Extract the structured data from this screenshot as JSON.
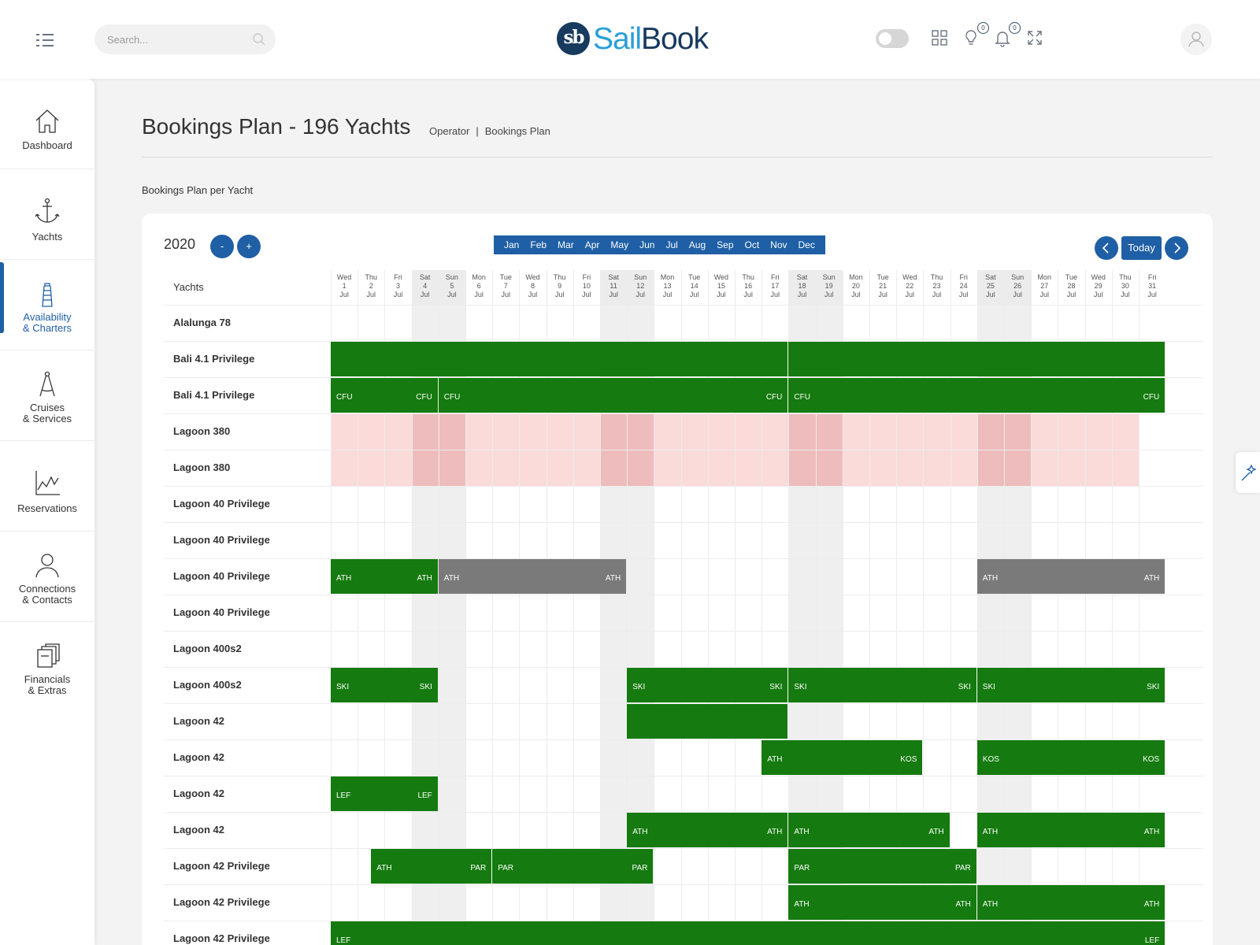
{
  "app": {
    "logo_prefix": "sb",
    "logo_sail": "Sail",
    "logo_book": "Book"
  },
  "topbar": {
    "search_placeholder": "Search...",
    "icons": [
      "menu-icon",
      "search-icon",
      "theme-toggle",
      "apps-grid-icon",
      "lightbulb-icon",
      "bell-icon",
      "fullscreen-icon",
      "user-icon"
    ],
    "tips_count": "0",
    "notifications_count": "0"
  },
  "sidebar": {
    "items": [
      {
        "label": "Dashboard",
        "icon": "home-icon"
      },
      {
        "label": "Yachts",
        "icon": "anchor-icon"
      },
      {
        "label": "Availability\n& Charters",
        "icon": "lighthouse-icon",
        "active": true
      },
      {
        "label": "Cruises\n& Services",
        "icon": "compass-icon"
      },
      {
        "label": "Reservations",
        "icon": "chart-line-icon"
      },
      {
        "label": "Connections\n& Contacts",
        "icon": "person-icon"
      },
      {
        "label": "Financials\n& Extras",
        "icon": "documents-icon"
      }
    ]
  },
  "page": {
    "title": "Bookings Plan - 196 Yachts",
    "breadcrumb": [
      "Operator",
      "Bookings Plan"
    ],
    "breadcrumb_sep": "|",
    "section_label": "Bookings Plan per Yacht"
  },
  "planner": {
    "year": "2020",
    "minus_label": "-",
    "plus_label": "+",
    "months": [
      "Jan",
      "Feb",
      "Mar",
      "Apr",
      "May",
      "Jun",
      "Jul",
      "Aug",
      "Sep",
      "Oct",
      "Nov",
      "Dec"
    ],
    "today_label": "Today",
    "prev_icon": "chevron-left-icon",
    "next_icon": "chevron-right-icon",
    "yachts_header": "Yachts",
    "month_abbr": "Jul",
    "days": [
      {
        "dow": "Wed",
        "d": "1"
      },
      {
        "dow": "Thu",
        "d": "2"
      },
      {
        "dow": "Fri",
        "d": "3"
      },
      {
        "dow": "Sat",
        "d": "4"
      },
      {
        "dow": "Sun",
        "d": "5"
      },
      {
        "dow": "Mon",
        "d": "6"
      },
      {
        "dow": "Tue",
        "d": "7"
      },
      {
        "dow": "Wed",
        "d": "8"
      },
      {
        "dow": "Thu",
        "d": "9"
      },
      {
        "dow": "Fri",
        "d": "10"
      },
      {
        "dow": "Sat",
        "d": "11"
      },
      {
        "dow": "Sun",
        "d": "12"
      },
      {
        "dow": "Mon",
        "d": "13"
      },
      {
        "dow": "Tue",
        "d": "14"
      },
      {
        "dow": "Wed",
        "d": "15"
      },
      {
        "dow": "Thu",
        "d": "16"
      },
      {
        "dow": "Fri",
        "d": "17"
      },
      {
        "dow": "Sat",
        "d": "18"
      },
      {
        "dow": "Sun",
        "d": "19"
      },
      {
        "dow": "Mon",
        "d": "20"
      },
      {
        "dow": "Tue",
        "d": "21"
      },
      {
        "dow": "Wed",
        "d": "22"
      },
      {
        "dow": "Thu",
        "d": "23"
      },
      {
        "dow": "Fri",
        "d": "24"
      },
      {
        "dow": "Sat",
        "d": "25"
      },
      {
        "dow": "Sun",
        "d": "26"
      },
      {
        "dow": "Mon",
        "d": "27"
      },
      {
        "dow": "Tue",
        "d": "28"
      },
      {
        "dow": "Wed",
        "d": "29"
      },
      {
        "dow": "Thu",
        "d": "30"
      },
      {
        "dow": "Fri",
        "d": "31"
      }
    ],
    "colors": {
      "booked": "#157a0f",
      "option": "#7a7a7a",
      "unavailable": "#fbdada",
      "accent": "#1f5fa5"
    },
    "rows": [
      {
        "yacht": "Alalunga 78",
        "bookings": []
      },
      {
        "yacht": "Bali 4.1 Privilege",
        "bookings": [
          {
            "start": 1,
            "end": 18,
            "from": "",
            "to": "",
            "status": "booked"
          },
          {
            "start": 18,
            "end": 32,
            "from": "",
            "to": "",
            "status": "booked"
          }
        ]
      },
      {
        "yacht": "Bali 4.1 Privilege",
        "bookings": [
          {
            "start": 1,
            "end": 5,
            "from": "CFU",
            "to": "CFU",
            "status": "booked"
          },
          {
            "start": 5,
            "end": 18,
            "from": "CFU",
            "to": "CFU",
            "status": "booked"
          },
          {
            "start": 18,
            "end": 32,
            "from": "CFU",
            "to": "CFU",
            "status": "booked"
          }
        ]
      },
      {
        "yacht": "Lagoon 380",
        "unavailable": true,
        "bookings": []
      },
      {
        "yacht": "Lagoon 380",
        "unavailable": true,
        "bookings": []
      },
      {
        "yacht": "Lagoon 40 Privilege",
        "bookings": []
      },
      {
        "yacht": "Lagoon 40 Privilege",
        "bookings": []
      },
      {
        "yacht": "Lagoon 40 Privilege",
        "bookings": [
          {
            "start": 1,
            "end": 5,
            "from": "ATH",
            "to": "ATH",
            "status": "booked"
          },
          {
            "start": 5,
            "end": 12,
            "from": "ATH",
            "to": "ATH",
            "status": "option"
          },
          {
            "start": 25,
            "end": 32,
            "from": "ATH",
            "to": "ATH",
            "status": "option"
          }
        ]
      },
      {
        "yacht": "Lagoon 40 Privilege",
        "bookings": []
      },
      {
        "yacht": "Lagoon 400s2",
        "bookings": []
      },
      {
        "yacht": "Lagoon 400s2",
        "bookings": [
          {
            "start": 1,
            "end": 5,
            "from": "SKI",
            "to": "SKI",
            "status": "booked"
          },
          {
            "start": 12,
            "end": 18,
            "from": "SKI",
            "to": "SKI",
            "status": "booked"
          },
          {
            "start": 18,
            "end": 25,
            "from": "SKI",
            "to": "SKI",
            "status": "booked"
          },
          {
            "start": 25,
            "end": 32,
            "from": "SKI",
            "to": "SKI",
            "status": "booked"
          }
        ]
      },
      {
        "yacht": "Lagoon 42",
        "bookings": [
          {
            "start": 12,
            "end": 18,
            "from": "",
            "to": "",
            "status": "booked"
          }
        ]
      },
      {
        "yacht": "Lagoon 42",
        "bookings": [
          {
            "start": 17,
            "end": 23,
            "from": "ATH",
            "to": "KOS",
            "status": "booked"
          },
          {
            "start": 25,
            "end": 32,
            "from": "KOS",
            "to": "KOS",
            "status": "booked"
          }
        ]
      },
      {
        "yacht": "Lagoon 42",
        "bookings": [
          {
            "start": 1,
            "end": 5,
            "from": "LEF",
            "to": "LEF",
            "status": "booked"
          }
        ]
      },
      {
        "yacht": "Lagoon 42",
        "bookings": [
          {
            "start": 12,
            "end": 18,
            "from": "ATH",
            "to": "ATH",
            "status": "booked"
          },
          {
            "start": 18,
            "end": 24,
            "from": "ATH",
            "to": "ATH",
            "status": "booked"
          },
          {
            "start": 25,
            "end": 32,
            "from": "ATH",
            "to": "ATH",
            "status": "booked"
          }
        ]
      },
      {
        "yacht": "Lagoon 42 Privilege",
        "bookings": [
          {
            "start": 2.5,
            "end": 7,
            "from": "ATH",
            "to": "PAR",
            "status": "booked"
          },
          {
            "start": 7,
            "end": 13,
            "from": "PAR",
            "to": "PAR",
            "status": "booked"
          },
          {
            "start": 18,
            "end": 25,
            "from": "PAR",
            "to": "PAR",
            "status": "booked"
          }
        ]
      },
      {
        "yacht": "Lagoon 42 Privilege",
        "bookings": [
          {
            "start": 18,
            "end": 25,
            "from": "ATH",
            "to": "ATH",
            "status": "booked"
          },
          {
            "start": 25,
            "end": 32,
            "from": "ATH",
            "to": "ATH",
            "status": "booked"
          }
        ]
      },
      {
        "yacht": "Lagoon 42 Privilege",
        "bookings": [
          {
            "start": 1,
            "end": 32,
            "from": "LEF",
            "to": "LEF",
            "status": "booked"
          }
        ]
      }
    ]
  }
}
